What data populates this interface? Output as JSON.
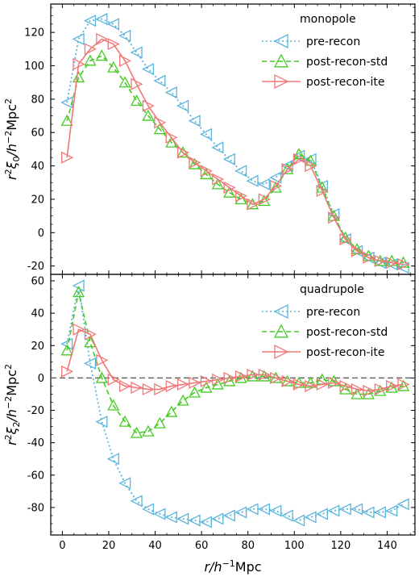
{
  "chart_data": [
    {
      "type": "line",
      "panel": "monopole",
      "ylabel_parts": [
        "r",
        "2",
        "ξ",
        "0",
        "/h",
        "−2",
        "Mpc",
        "2"
      ],
      "xlim": [
        -5,
        152
      ],
      "ylim": [
        -25,
        137
      ],
      "yticks": [
        -20,
        0,
        20,
        40,
        60,
        80,
        100,
        120
      ],
      "grid": false,
      "legend": {
        "title": "monopole",
        "placement": "top-right"
      },
      "x": [
        2,
        7,
        12,
        17,
        22,
        27,
        32,
        37,
        42,
        47,
        52,
        57,
        62,
        67,
        72,
        77,
        82,
        87,
        92,
        97,
        102,
        107,
        112,
        117,
        122,
        127,
        132,
        137,
        142,
        147
      ],
      "series": [
        {
          "name": "pre-recon",
          "color": "#5ab4dc",
          "linestyle": "dotted",
          "marker": "triangle-left",
          "values": [
            78,
            116,
            127,
            128,
            125,
            118,
            108,
            98,
            91,
            84,
            76,
            67,
            59,
            51,
            44,
            37,
            31,
            29,
            33,
            40,
            46,
            44,
            28,
            11,
            -4,
            -11,
            -15,
            -18,
            -19,
            -21
          ]
        },
        {
          "name": "post-recon-std",
          "color": "#44cc22",
          "linestyle": "dashed",
          "marker": "triangle-up",
          "values": [
            67,
            93,
            103,
            106,
            99,
            90,
            79,
            70,
            62,
            54,
            48,
            41,
            35,
            29,
            24,
            20,
            17,
            19,
            27,
            38,
            47,
            43,
            27,
            10,
            -3,
            -10,
            -14,
            -17,
            -17,
            -18
          ]
        },
        {
          "name": "post-recon-ite",
          "color": "#f07878",
          "linestyle": "solid",
          "marker": "triangle-right",
          "values": [
            45,
            101,
            110,
            116,
            113,
            103,
            89,
            76,
            66,
            57,
            48,
            42,
            37,
            32,
            27,
            22,
            17,
            20,
            28,
            38,
            44,
            40,
            25,
            9,
            -4,
            -11,
            -15,
            -17,
            -18,
            -19
          ]
        }
      ]
    },
    {
      "type": "line",
      "panel": "quadrupole",
      "xlabel_parts": [
        "r",
        "/h",
        "−1",
        "Mpc"
      ],
      "ylabel_parts": [
        "r",
        "2",
        "ξ",
        "2",
        "/h",
        "−2",
        "Mpc",
        "2"
      ],
      "xlim": [
        -5,
        152
      ],
      "ylim": [
        -97,
        64
      ],
      "yticks": [
        -80,
        -60,
        -40,
        -20,
        0,
        20,
        40,
        60
      ],
      "xticks": [
        0,
        20,
        40,
        60,
        80,
        100,
        120,
        140
      ],
      "grid": false,
      "reference_line": {
        "y": 0,
        "style": "dashed",
        "color": "#666666"
      },
      "legend": {
        "title": "quadrupole",
        "placement": "top-right"
      },
      "x": [
        2,
        7,
        12,
        17,
        22,
        27,
        32,
        37,
        42,
        47,
        52,
        57,
        62,
        67,
        72,
        77,
        82,
        87,
        92,
        97,
        102,
        107,
        112,
        117,
        122,
        127,
        132,
        137,
        142,
        147
      ],
      "series": [
        {
          "name": "pre-recon",
          "color": "#5ab4dc",
          "linestyle": "dotted",
          "marker": "triangle-left",
          "values": [
            21,
            57,
            9,
            -27,
            -50,
            -65,
            -76,
            -81,
            -84,
            -86,
            -87,
            -88,
            -89,
            -87,
            -85,
            -83,
            -81,
            -81,
            -82,
            -85,
            -88,
            -86,
            -84,
            -82,
            -81,
            -81,
            -83,
            -83,
            -82,
            -78
          ]
        },
        {
          "name": "post-recon-std",
          "color": "#44cc22",
          "linestyle": "dashed",
          "marker": "triangle-up",
          "values": [
            17,
            53,
            22,
            0,
            -17,
            -27,
            -34,
            -33,
            -28,
            -21,
            -14,
            -9,
            -6,
            -4,
            -2,
            0,
            1,
            1,
            0,
            -2,
            -3,
            -3,
            -1,
            -2,
            -7,
            -10,
            -10,
            -8,
            -6,
            -5
          ]
        },
        {
          "name": "post-recon-ite",
          "color": "#f07878",
          "linestyle": "solid",
          "marker": "triangle-right",
          "values": [
            4,
            30,
            27,
            11,
            -1,
            -5,
            -6,
            -7,
            -7,
            -5,
            -4,
            -3,
            -2,
            -1,
            0,
            1,
            2,
            2,
            0,
            -2,
            -4,
            -5,
            -4,
            -3,
            -5,
            -7,
            -8,
            -7,
            -5,
            -4
          ]
        }
      ]
    }
  ]
}
